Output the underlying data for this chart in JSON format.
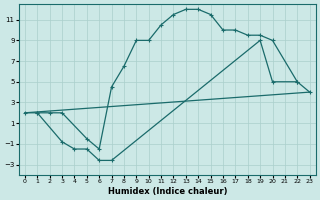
{
  "xlabel": "Humidex (Indice chaleur)",
  "bg_color": "#cce8e6",
  "line_color": "#1a6b6b",
  "grid_color": "#aacfcc",
  "xlim": [
    -0.5,
    23.5
  ],
  "ylim": [
    -4,
    12.5
  ],
  "xticks": [
    0,
    1,
    2,
    3,
    4,
    5,
    6,
    7,
    8,
    9,
    10,
    11,
    12,
    13,
    14,
    15,
    16,
    17,
    18,
    19,
    20,
    21,
    22,
    23
  ],
  "yticks": [
    -3,
    -1,
    1,
    3,
    5,
    7,
    9,
    11
  ],
  "line1_x": [
    0,
    1,
    2,
    3,
    5,
    6,
    7,
    8,
    9,
    10,
    11,
    12,
    13,
    14,
    15,
    16,
    17,
    18,
    19,
    20,
    22
  ],
  "line1_y": [
    2,
    2,
    2,
    2,
    -0.5,
    -1.5,
    4.5,
    6.5,
    9,
    9,
    10.5,
    11.5,
    12,
    12,
    11.5,
    10,
    10,
    9.5,
    9.5,
    9,
    5
  ],
  "line2_x": [
    1,
    3,
    4,
    5,
    6,
    7,
    19,
    20,
    22,
    23
  ],
  "line2_y": [
    2,
    -0.8,
    -1.5,
    -1.5,
    -2.6,
    -2.6,
    9,
    5,
    5,
    4
  ],
  "line3_x": [
    0,
    23
  ],
  "line3_y": [
    2,
    4
  ],
  "marker": "+"
}
